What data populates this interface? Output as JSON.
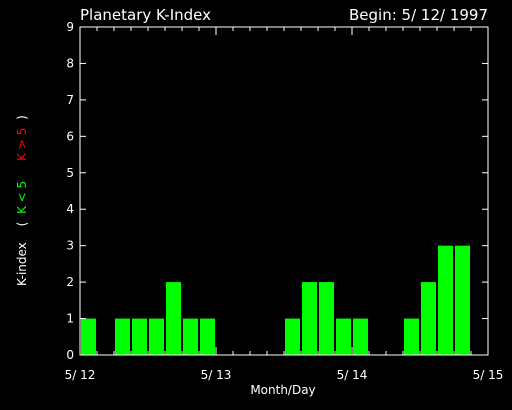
{
  "chart_data": {
    "type": "bar",
    "title": "Planetary K-Index",
    "subtitle": "Begin: 5/ 12/ 1997",
    "xlabel": "Month/Day",
    "ylabel": {
      "prefix": "K-index",
      "open": "(",
      "low_label": "K < 5",
      "high_label": "K > 5",
      "close": ")"
    },
    "ylim": [
      0,
      9
    ],
    "y_ticks": [
      "0",
      "1",
      "2",
      "3",
      "4",
      "5",
      "6",
      "7",
      "8",
      "9"
    ],
    "x_ticks": [
      {
        "day": 0,
        "label": "5/ 12"
      },
      {
        "day": 1,
        "label": "5/ 13"
      },
      {
        "day": 2,
        "label": "5/ 14"
      },
      {
        "day": 3,
        "label": "5/ 15"
      }
    ],
    "interval_hours": 3,
    "values": [
      1,
      0,
      1,
      1,
      1,
      2,
      1,
      1,
      0,
      0,
      0,
      0,
      1,
      2,
      2,
      1,
      1,
      0,
      0,
      1,
      2,
      3,
      3,
      0
    ],
    "colors": {
      "background": "#000000",
      "axes": "#ffffff",
      "bar_low": "#00ff00",
      "bar_high": "#ff0000",
      "label_low": "#00ff00",
      "label_high": "#ff0000"
    }
  }
}
